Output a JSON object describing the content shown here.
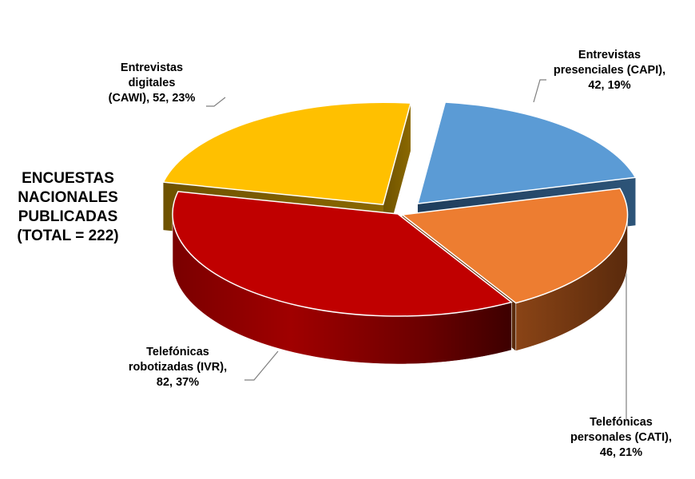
{
  "chart_data": {
    "type": "pie",
    "title": "ENCUESTAS\nNACIONALES\nPUBLICADAS\n(TOTAL = 222)",
    "total": 222,
    "three_d": true,
    "exploded": true,
    "slices": [
      {
        "label": "Entrevistas presenciales (CAPI), 42, 19%",
        "category": "Entrevistas presenciales (CAPI)",
        "value": 42,
        "percent": 19,
        "color": "#5b9bd5"
      },
      {
        "label": "Telefónicas personales (CATI), 46, 21%",
        "category": "Telefónicas personales (CATI)",
        "value": 46,
        "percent": 21,
        "color": "#ed7d31"
      },
      {
        "label": "Telefónicas robotizadas (IVR), 82, 37%",
        "category": "Telefónicas robotizadas (IVR)",
        "value": 82,
        "percent": 37,
        "color": "#c00000"
      },
      {
        "label": "Entrevistas digitales (CAWI), 52, 23%",
        "category": "Entrevistas digitales (CAWI)",
        "value": 52,
        "percent": 23,
        "color": "#ffc000"
      }
    ],
    "label_text": [
      "Entrevistas\npresenciales (CAPI),\n42, 19%",
      "Telefónicas\npersonales (CATI),\n46, 21%",
      "Telefónicas\nrobotizadas (IVR),\n82, 37%",
      "Entrevistas\ndigitales\n(CAWI), 52, 23%"
    ]
  }
}
